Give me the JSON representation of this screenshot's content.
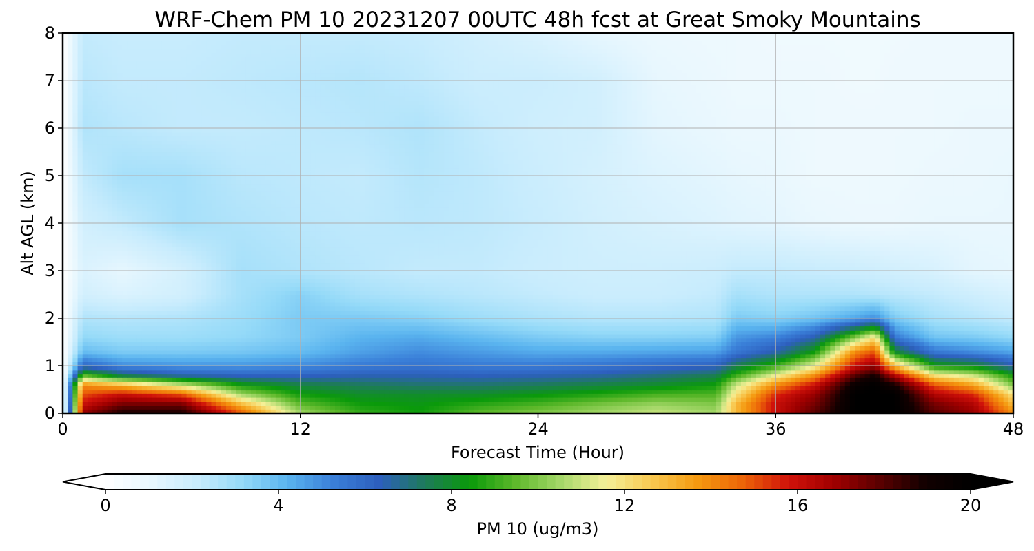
{
  "chart_data": {
    "type": "heatmap",
    "title": "WRF-Chem PM 10  20231207 00UTC 48h fcst at Great Smoky Mountains",
    "xlabel": "Forecast Time (Hour)",
    "ylabel": "Alt AGL (km)",
    "xlim": [
      0,
      48
    ],
    "ylim": [
      0,
      8
    ],
    "x_ticks": [
      0,
      12,
      24,
      36,
      48
    ],
    "y_ticks": [
      0,
      1,
      2,
      3,
      4,
      5,
      6,
      7,
      8
    ],
    "grid": true,
    "colorbar": {
      "label": "PM 10  (ug/m3)",
      "min": 0,
      "max": 20,
      "ticks": [
        0,
        4,
        8,
        12,
        16,
        20
      ],
      "extend": "both",
      "orientation": "horizontal",
      "position": "bottom",
      "colors": [
        "#ffffff",
        "#e8f7fe",
        "#c8ecfd",
        "#95daf8",
        "#5ab4ef",
        "#3a7fd8",
        "#2d5fbe",
        "#1e7a5c",
        "#0a9a0a",
        "#5db82a",
        "#a6d86a",
        "#f5f098",
        "#f8c850",
        "#f59a10",
        "#ec6408",
        "#d0120a",
        "#a00000",
        "#5a0000",
        "#120000",
        "#000000"
      ]
    },
    "x": [
      0,
      1,
      3,
      6,
      9,
      12,
      15,
      18,
      21,
      24,
      27,
      30,
      33,
      34,
      36,
      38,
      40,
      41,
      42,
      44,
      46,
      48
    ],
    "y": [
      0,
      0.2,
      0.4,
      0.6,
      0.8,
      1.0,
      1.3,
      1.6,
      2.0,
      2.5,
      3.0,
      4.0,
      5.0,
      6.0,
      7.0,
      8.0
    ],
    "values": [
      [
        0,
        17,
        19,
        19,
        15,
        10.5,
        9,
        8.5,
        9.5,
        10,
        10.5,
        11,
        10.5,
        13,
        16,
        18,
        20,
        20,
        20,
        18,
        17,
        14
      ],
      [
        0,
        16,
        17.5,
        17.5,
        13,
        9.5,
        8.5,
        8.3,
        8.8,
        9.2,
        9.8,
        10.3,
        10,
        13,
        16,
        17.5,
        20,
        20,
        20,
        17.5,
        16.5,
        13
      ],
      [
        0,
        15,
        16,
        15,
        10.5,
        8.5,
        8,
        8,
        8,
        8.3,
        8.7,
        9.2,
        9.3,
        12,
        15.5,
        17,
        20,
        20,
        20,
        16.5,
        15.5,
        12
      ],
      [
        0,
        14,
        13,
        11,
        8.5,
        7.7,
        7.4,
        7.2,
        7.2,
        7.4,
        7.7,
        8,
        8.5,
        11,
        14,
        16,
        19.5,
        20,
        19,
        15,
        13.5,
        10
      ],
      [
        0,
        9.5,
        7.5,
        6.5,
        6.2,
        6.2,
        6.4,
        6.4,
        6.3,
        6.4,
        6.6,
        7,
        7.5,
        9,
        11.5,
        14,
        18,
        19,
        16.5,
        12,
        11,
        8.5
      ],
      [
        0,
        6,
        5,
        4.8,
        4.8,
        5,
        5.4,
        5.6,
        5.4,
        5.4,
        5.6,
        5.9,
        6.2,
        7.5,
        9,
        11.5,
        16,
        17,
        13,
        8.5,
        8,
        6.5
      ],
      [
        0,
        4,
        3.6,
        3.6,
        3.7,
        4,
        4.6,
        5,
        4.7,
        4.4,
        4.4,
        4.5,
        4.6,
        5.5,
        6.5,
        8.5,
        14,
        15,
        8,
        5.5,
        5,
        4.5
      ],
      [
        0,
        3.2,
        3,
        3,
        3.2,
        3.6,
        4.2,
        4.4,
        4,
        3.6,
        3.4,
        3.4,
        3.5,
        4.8,
        5.2,
        6.5,
        10,
        12,
        5.5,
        3.8,
        3.6,
        3.2
      ],
      [
        0,
        2.6,
        2.5,
        2.6,
        3,
        3.6,
        3.6,
        3.4,
        3,
        2.7,
        2.5,
        2.5,
        2.6,
        3.6,
        3.4,
        3.8,
        4.5,
        5,
        3.6,
        2.8,
        2.5,
        2.2
      ],
      [
        0,
        1.8,
        1.5,
        1.8,
        2.8,
        3.4,
        2.8,
        2.6,
        2.4,
        2.2,
        2,
        2,
        2.2,
        2.8,
        2.6,
        2.6,
        2.6,
        2.5,
        2.4,
        2.2,
        1.9,
        1.6
      ],
      [
        0,
        1.5,
        1.1,
        1.7,
        2.8,
        2.6,
        2.4,
        2.2,
        2.2,
        2,
        1.9,
        1.9,
        2,
        2.2,
        2.2,
        2.1,
        2,
        1.9,
        1.8,
        1.6,
        1.2,
        1.1
      ],
      [
        0,
        1.8,
        2.2,
        2.8,
        2.6,
        2.4,
        2.3,
        2.4,
        2.3,
        2.1,
        1.8,
        1.6,
        1.4,
        1.3,
        1.2,
        1,
        0.9,
        0.9,
        0.9,
        1,
        1,
        1
      ],
      [
        0,
        2.2,
        2.8,
        2.8,
        2.4,
        2.3,
        2.2,
        2.5,
        2.3,
        2,
        1.7,
        1.4,
        1.2,
        1.1,
        1,
        0.8,
        0.8,
        0.8,
        0.8,
        0.9,
        0.9,
        1
      ],
      [
        0,
        2.6,
        2.4,
        2.2,
        2.2,
        2.3,
        2.4,
        2.6,
        2.2,
        1.9,
        1.8,
        1.2,
        1,
        0.9,
        0.9,
        0.8,
        0.8,
        0.8,
        0.8,
        0.8,
        0.9,
        0.9
      ],
      [
        0,
        2.4,
        2.2,
        2.2,
        2.3,
        2.4,
        2.5,
        2.3,
        2,
        2,
        1.8,
        1.1,
        0.9,
        0.8,
        0.8,
        0.8,
        0.7,
        0.7,
        0.8,
        0.8,
        0.8,
        0.8
      ],
      [
        0,
        2.2,
        2.1,
        2.1,
        2.2,
        2.2,
        2.2,
        2.1,
        1.8,
        1.5,
        1.1,
        0.9,
        0.8,
        0.8,
        0.7,
        0.7,
        0.7,
        0.7,
        0.7,
        0.8,
        0.8,
        0.8
      ]
    ]
  }
}
